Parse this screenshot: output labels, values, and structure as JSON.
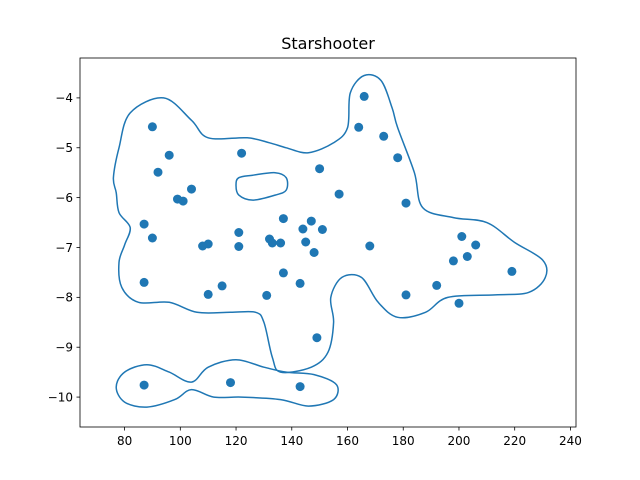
{
  "chart_data": {
    "type": "scatter",
    "title": "Starshooter",
    "xlabel": "",
    "ylabel": "",
    "xlim": [
      64,
      242
    ],
    "ylim": [
      -10.6,
      -3.2
    ],
    "xticks": [
      80,
      100,
      120,
      140,
      160,
      180,
      200,
      220,
      240
    ],
    "yticks": [
      -4,
      -5,
      -6,
      -7,
      -8,
      -9,
      -10
    ],
    "grid": false,
    "colors": {
      "series": "#1f77b4"
    },
    "series": [
      {
        "kind": "points",
        "x": [
          90,
          166,
          173,
          164,
          96,
          122,
          178,
          92,
          150,
          104,
          157,
          99,
          101,
          181,
          87,
          137,
          147,
          151,
          144,
          121,
          90,
          132,
          201,
          206,
          110,
          108,
          133,
          136,
          145,
          121,
          168,
          148,
          203,
          198,
          137,
          219,
          87,
          192,
          115,
          143,
          110,
          131,
          181,
          200,
          149,
          87,
          118,
          143
        ],
        "y": [
          -4.58,
          -3.97,
          -4.77,
          -4.59,
          -5.15,
          -5.11,
          -5.2,
          -5.49,
          -5.42,
          -5.83,
          -5.93,
          -6.03,
          -6.07,
          -6.11,
          -6.53,
          -6.42,
          -6.47,
          -6.64,
          -6.63,
          -6.7,
          -6.81,
          -6.83,
          -6.78,
          -6.95,
          -6.93,
          -6.97,
          -6.91,
          -6.91,
          -6.89,
          -6.98,
          -6.97,
          -7.1,
          -7.18,
          -7.27,
          -7.51,
          -7.48,
          -7.7,
          -7.76,
          -7.77,
          -7.72,
          -7.94,
          -7.96,
          -7.95,
          -8.12,
          -8.81,
          -9.76,
          -9.71,
          -9.79
        ]
      },
      {
        "kind": "contour",
        "paths": [
          [
            [
              78,
              -5.0
            ],
            [
              82,
              -4.3
            ],
            [
              94,
              -4.0
            ],
            [
              104,
              -4.45
            ],
            [
              110,
              -4.8
            ],
            [
              124,
              -4.8
            ],
            [
              132,
              -4.9
            ],
            [
              138,
              -5.0
            ],
            [
              146,
              -5.1
            ],
            [
              155,
              -4.9
            ],
            [
              160,
              -4.6
            ],
            [
              161,
              -3.9
            ],
            [
              166,
              -3.55
            ],
            [
              172,
              -3.65
            ],
            [
              176,
              -4.2
            ],
            [
              178,
              -4.6
            ],
            [
              184,
              -5.5
            ],
            [
              187,
              -6.2
            ],
            [
              198,
              -6.4
            ],
            [
              210,
              -6.5
            ],
            [
              220,
              -6.9
            ],
            [
              230,
              -7.25
            ],
            [
              231,
              -7.6
            ],
            [
              225,
              -7.9
            ],
            [
              213,
              -7.95
            ],
            [
              196,
              -8.0
            ],
            [
              188,
              -8.3
            ],
            [
              178,
              -8.4
            ],
            [
              171,
              -8.1
            ],
            [
              165,
              -7.6
            ],
            [
              158,
              -7.6
            ],
            [
              154,
              -8.0
            ],
            [
              155,
              -8.5
            ],
            [
              153,
              -9.1
            ],
            [
              147,
              -9.4
            ],
            [
              136,
              -9.5
            ],
            [
              133,
              -9.2
            ],
            [
              130,
              -8.5
            ],
            [
              127,
              -8.3
            ],
            [
              118,
              -8.3
            ],
            [
              106,
              -8.3
            ],
            [
              96,
              -8.1
            ],
            [
              85,
              -8.1
            ],
            [
              79,
              -7.8
            ],
            [
              78,
              -7.3
            ],
            [
              80,
              -6.95
            ],
            [
              82,
              -6.6
            ],
            [
              78,
              -6.3
            ],
            [
              77,
              -5.9
            ],
            [
              76,
              -5.6
            ],
            [
              78,
              -5.0
            ]
          ],
          [
            [
              121,
              -5.6
            ],
            [
              126,
              -5.55
            ],
            [
              134,
              -5.5
            ],
            [
              138,
              -5.6
            ],
            [
              138,
              -5.85
            ],
            [
              134,
              -5.95
            ],
            [
              126,
              -6.05
            ],
            [
              121,
              -5.95
            ],
            [
              120,
              -5.75
            ],
            [
              121,
              -5.6
            ]
          ],
          [
            [
              77,
              -9.8
            ],
            [
              80,
              -9.5
            ],
            [
              88,
              -9.35
            ],
            [
              96,
              -9.5
            ],
            [
              104,
              -9.7
            ],
            [
              110,
              -9.4
            ],
            [
              120,
              -9.25
            ],
            [
              130,
              -9.4
            ],
            [
              138,
              -9.5
            ],
            [
              148,
              -9.55
            ],
            [
              156,
              -9.75
            ],
            [
              155,
              -10.05
            ],
            [
              146,
              -10.18
            ],
            [
              136,
              -10.05
            ],
            [
              122,
              -10.0
            ],
            [
              112,
              -10.0
            ],
            [
              104,
              -9.85
            ],
            [
              98,
              -10.05
            ],
            [
              88,
              -10.2
            ],
            [
              80,
              -10.1
            ],
            [
              77,
              -9.8
            ]
          ]
        ]
      }
    ]
  }
}
